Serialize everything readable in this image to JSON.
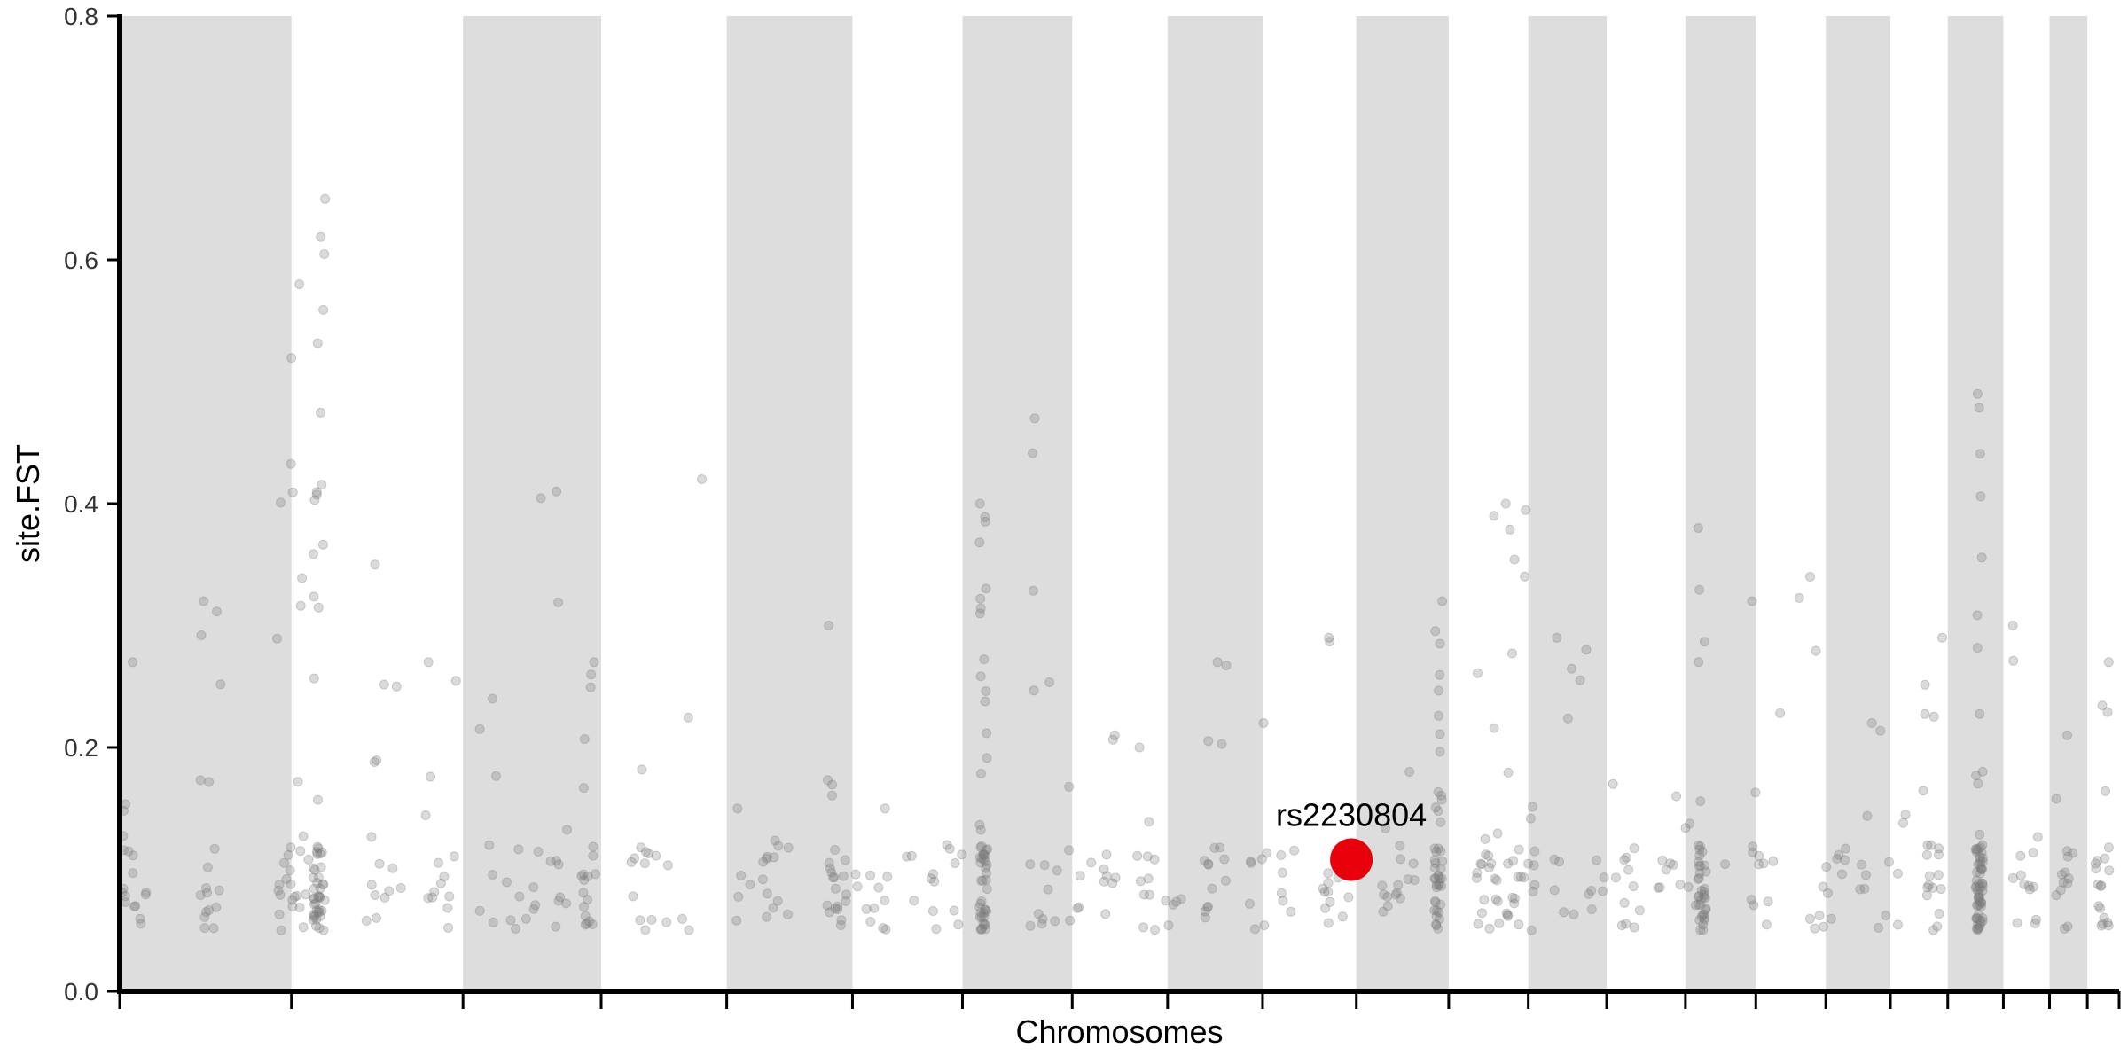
{
  "chart_data": {
    "type": "scatter",
    "title": "",
    "xlabel": "Chromosomes",
    "ylabel": "site.FST",
    "ylim": [
      0,
      0.8
    ],
    "yticks": [
      "0.0",
      "0.2",
      "0.4",
      "0.6",
      "0.8"
    ],
    "grid": false,
    "legend": "none",
    "colors": {
      "band": "#dddddd",
      "point": "#7a7a7a",
      "highlight": "#e8000b",
      "axis": "#000000"
    },
    "chromosome_boundaries": [
      0,
      0.0859,
      0.1717,
      0.2408,
      0.3036,
      0.3665,
      0.4215,
      0.4764,
      0.5241,
      0.5716,
      0.6185,
      0.6647,
      0.7045,
      0.7437,
      0.7831,
      0.8183,
      0.8533,
      0.8856,
      0.9143,
      0.9421,
      0.9652,
      0.9841,
      1.0
    ],
    "shaded_chromosomes": [
      0,
      2,
      4,
      6,
      8,
      10,
      12,
      14,
      16,
      18,
      20
    ],
    "clusters": [
      {
        "x": 0.008,
        "spread": 0.007,
        "n": 18,
        "max": 0.27
      },
      {
        "x": 0.055,
        "spread": 0.006,
        "n": 18,
        "max": 0.32
      },
      {
        "x": 0.105,
        "spread": 0.008,
        "n": 30,
        "max": 0.58
      },
      {
        "x": 0.121,
        "spread": 0.003,
        "n": 55,
        "max": 0.65
      },
      {
        "x": 0.16,
        "spread": 0.012,
        "n": 14,
        "max": 0.35
      },
      {
        "x": 0.195,
        "spread": 0.008,
        "n": 14,
        "max": 0.27
      },
      {
        "x": 0.17,
        "spread": 0.002,
        "n": 1,
        "max": 0.25
      },
      {
        "x": 0.235,
        "spread": 0.014,
        "n": 14,
        "max": 0.24
      },
      {
        "x": 0.26,
        "spread": 0.01,
        "n": 14,
        "max": 0.41
      },
      {
        "x": 0.285,
        "spread": 0.004,
        "n": 20,
        "max": 0.27
      },
      {
        "x": 0.33,
        "spread": 0.02,
        "n": 18,
        "max": 0.42
      },
      {
        "x": 0.39,
        "spread": 0.015,
        "n": 18,
        "max": 0.15
      },
      {
        "x": 0.435,
        "spread": 0.005,
        "n": 22,
        "max": 0.3
      },
      {
        "x": 0.455,
        "spread": 0.01,
        "n": 12,
        "max": 0.15
      },
      {
        "x": 0.495,
        "spread": 0.015,
        "n": 14,
        "max": 0.12
      },
      {
        "x": 0.524,
        "spread": 0.002,
        "n": 55,
        "max": 0.4
      },
      {
        "x": 0.56,
        "spread": 0.008,
        "n": 14,
        "max": 0.47
      },
      {
        "x": 0.59,
        "spread": 0.012,
        "n": 16,
        "max": 0.21
      },
      {
        "x": 0.63,
        "spread": 0.012,
        "n": 16,
        "max": 0.2
      },
      {
        "x": 0.665,
        "spread": 0.006,
        "n": 16,
        "max": 0.27
      },
      {
        "x": 0.7,
        "spread": 0.012,
        "n": 14,
        "max": 0.22
      },
      {
        "x": 0.736,
        "spread": 0.008,
        "n": 14,
        "max": 0.29
      },
      {
        "x": 0.775,
        "spread": 0.01,
        "n": 16,
        "max": 0.18
      },
      {
        "x": 0.8,
        "spread": 0.002,
        "n": 45,
        "max": 0.32
      },
      {
        "x": 0.83,
        "spread": 0.006,
        "n": 22,
        "max": 0.39
      },
      {
        "x": 0.85,
        "spread": 0.008,
        "n": 28,
        "max": 0.4
      },
      {
        "x": 0.886,
        "spread": 0.014,
        "n": 16,
        "max": 0.29
      },
      {
        "x": 0.915,
        "spread": 0.008,
        "n": 12,
        "max": 0.17
      },
      {
        "x": 0.945,
        "spread": 0.01,
        "n": 12,
        "max": 0.16
      },
      {
        "x": 0.96,
        "spread": 0.002,
        "n": 40,
        "max": 0.38
      },
      {
        "x": 0.99,
        "spread": 0.015,
        "n": 14,
        "max": 0.32
      },
      {
        "x": 1.033,
        "spread": 0.012,
        "n": 16,
        "max": 0.34
      },
      {
        "x": 1.07,
        "spread": 0.012,
        "n": 14,
        "max": 0.22
      },
      {
        "x": 1.1,
        "spread": 0.005,
        "n": 20,
        "max": 0.29
      },
      {
        "x": 1.128,
        "spread": 0.002,
        "n": 70,
        "max": 0.49
      },
      {
        "x": 1.155,
        "spread": 0.008,
        "n": 14,
        "max": 0.3
      },
      {
        "x": 1.18,
        "spread": 0.005,
        "n": 14,
        "max": 0.21
      },
      {
        "x": 1.203,
        "spread": 0.004,
        "n": 20,
        "max": 0.27
      }
    ],
    "highlight": {
      "label": "rs2230804",
      "x": 0.616,
      "y": 0.108
    }
  }
}
